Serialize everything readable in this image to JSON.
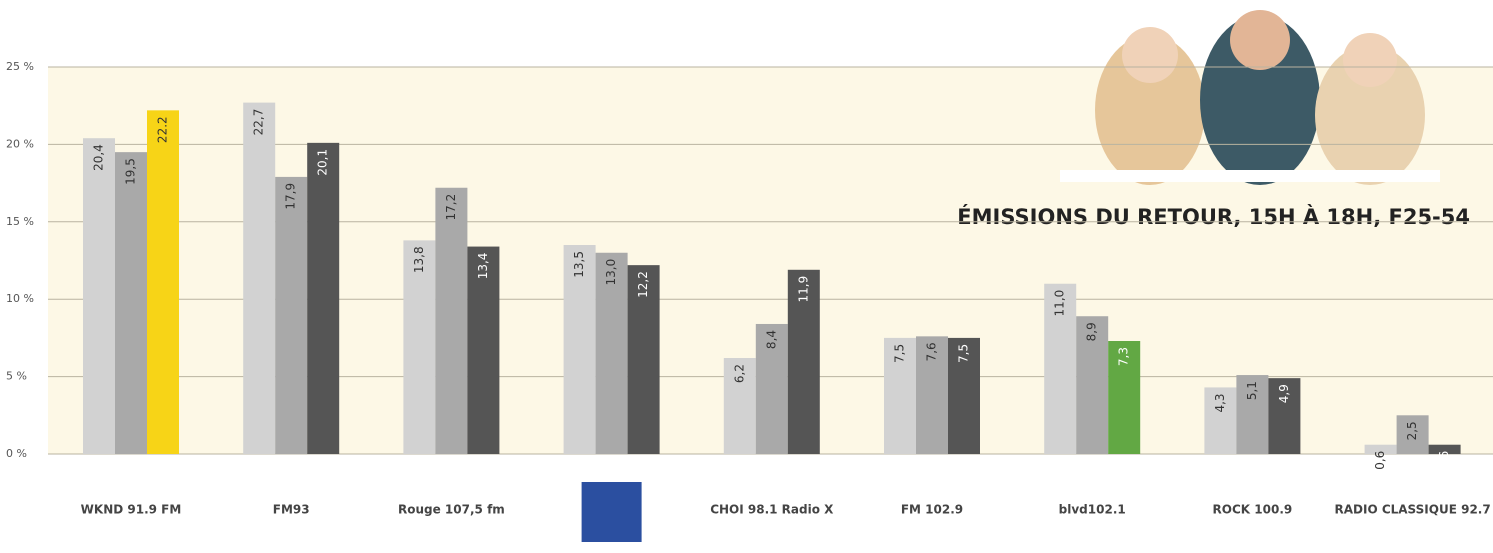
{
  "chart_data": {
    "type": "bar",
    "title": "ÉMISSIONS DU RETOUR, 15H À 18H, F25-54",
    "categories": [
      "WKND 91.9 FM",
      "FM93",
      "Rouge 107,5 fm",
      null,
      "CHOI 98.1 Radio X",
      "FM 102.9",
      "blvd102.1",
      "ROCK 100.9",
      "RADIO CLASSIQUE 92.7"
    ],
    "series": [
      {
        "color": "#d2d2d2",
        "values": [
          20.4,
          22.7,
          13.8,
          13.5,
          6.2,
          7.5,
          11.0,
          4.3,
          0.6
        ],
        "value_labels": [
          "20,4",
          "22,7",
          "13,8",
          "13,5",
          "6,2",
          "7,5",
          "11,0",
          "4,3",
          "0,6"
        ]
      },
      {
        "color": "#a9a9a9",
        "values": [
          19.5,
          17.9,
          17.2,
          13.0,
          8.4,
          7.6,
          8.9,
          5.1,
          2.5
        ],
        "value_labels": [
          "19,5",
          "17,9",
          "17,2",
          "13,0",
          "8,4",
          "7,6",
          "8,9",
          "5,1",
          "2,5"
        ]
      },
      {
        "color": "#555555",
        "colors": [
          "#f7d417",
          "#555555",
          "#555555",
          "#555555",
          "#555555",
          "#555555",
          "#62a844",
          "#555555",
          "#555555"
        ],
        "values": [
          22.2,
          20.1,
          13.4,
          12.2,
          11.9,
          7.5,
          7.3,
          4.9,
          0.6
        ],
        "value_labels": [
          "22.2",
          "20,1",
          "13,4",
          "12,2",
          "11,9",
          "7,5",
          "7,3",
          "4,9",
          "0,6"
        ]
      }
    ],
    "ylim": [
      0,
      25
    ],
    "yticks": [
      {
        "value": 0,
        "label": "0 %"
      },
      {
        "value": 5,
        "label": "5 %"
      },
      {
        "value": 10,
        "label": "10 %"
      },
      {
        "value": 15,
        "label": "15 %"
      },
      {
        "value": 20,
        "label": "20 %"
      },
      {
        "value": 25,
        "label": "25 %"
      }
    ],
    "grid": true
  }
}
